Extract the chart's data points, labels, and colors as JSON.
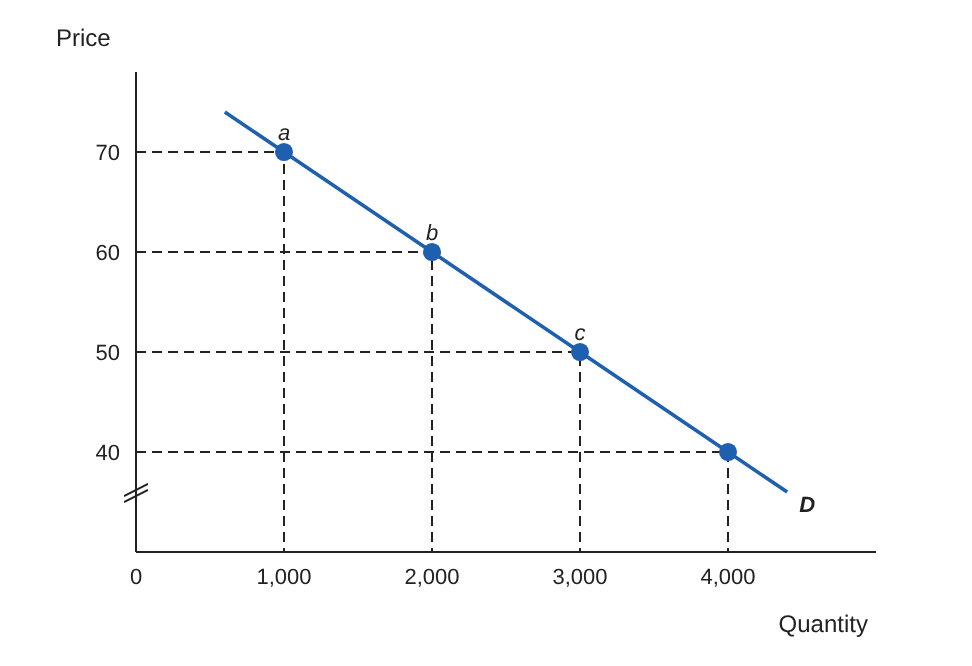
{
  "chart_data": {
    "type": "line",
    "xlabel": "Quantity",
    "ylabel": "Price",
    "xlim": [
      0,
      5000
    ],
    "ylim": [
      30,
      78
    ],
    "xticks": [
      {
        "value": 0,
        "label": "0"
      },
      {
        "value": 1000,
        "label": "1,000"
      },
      {
        "value": 2000,
        "label": "2,000"
      },
      {
        "value": 3000,
        "label": "3,000"
      },
      {
        "value": 4000,
        "label": "4,000"
      }
    ],
    "yticks": [
      40,
      50,
      60,
      70
    ],
    "series": [
      {
        "line_style": "dashed",
        "color": "#222222",
        "x": [
          0,
          1000,
          1000
        ],
        "values": [
          70,
          70,
          30
        ]
      },
      {
        "line_style": "dashed",
        "color": "#222222",
        "x": [
          0,
          2000,
          2000
        ],
        "values": [
          60,
          60,
          30
        ]
      },
      {
        "line_style": "dashed",
        "color": "#222222",
        "x": [
          0,
          3000,
          3000
        ],
        "values": [
          50,
          50,
          30
        ]
      },
      {
        "line_style": "dashed",
        "color": "#222222",
        "x": [
          0,
          4000,
          4000
        ],
        "values": [
          40,
          40,
          30
        ]
      },
      {
        "name": "D",
        "color": "#1f5fb0",
        "marker": "none",
        "line_style": "solid",
        "x": [
          600,
          1000,
          2000,
          3000,
          4000,
          4400
        ],
        "values": [
          74,
          70,
          60,
          50,
          40,
          36
        ]
      },
      {
        "type": "scatter",
        "color": "#1f5fb0",
        "marker": "circle",
        "x": [
          1000,
          2000,
          3000,
          4000
        ],
        "values": [
          70,
          60,
          50,
          40
        ]
      }
    ],
    "annotations": [
      {
        "text": "a",
        "x": 1000,
        "y": 70
      },
      {
        "text": "b",
        "x": 2000,
        "y": 60
      },
      {
        "text": "c",
        "x": 3000,
        "y": 50
      }
    ]
  }
}
